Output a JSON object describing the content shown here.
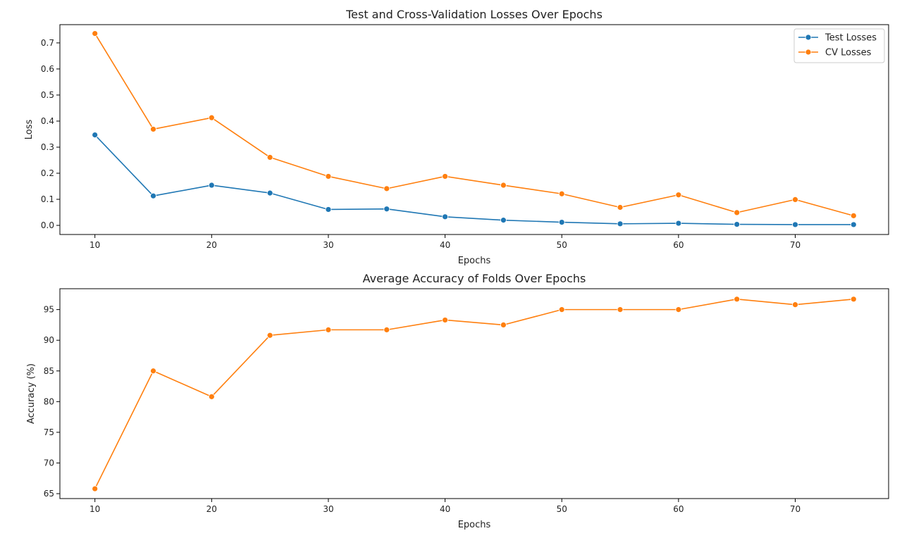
{
  "colors": {
    "test": "#1f77b4",
    "cv": "#ff7f0e"
  },
  "chart_data": [
    {
      "type": "line",
      "title": "Test and Cross-Validation Losses Over Epochs",
      "xlabel": "Epochs",
      "ylabel": "Loss",
      "xlim": [
        7,
        78
      ],
      "ylim": [
        -0.035,
        0.77
      ],
      "xticks": [
        10,
        20,
        30,
        40,
        50,
        60,
        70
      ],
      "yticks": [
        0.0,
        0.1,
        0.2,
        0.3,
        0.4,
        0.5,
        0.6,
        0.7
      ],
      "ytick_labels": [
        "0.0",
        "0.1",
        "0.2",
        "0.3",
        "0.4",
        "0.5",
        "0.6",
        "0.7"
      ],
      "legend_position": "top-right",
      "grid": false,
      "x": [
        10,
        15,
        20,
        25,
        30,
        35,
        40,
        45,
        50,
        55,
        60,
        65,
        70,
        75
      ],
      "series": [
        {
          "name": "Test Losses",
          "color_key": "test",
          "values": [
            0.347,
            0.113,
            0.154,
            0.124,
            0.061,
            0.063,
            0.033,
            0.02,
            0.012,
            0.006,
            0.008,
            0.004,
            0.003,
            0.003
          ]
        },
        {
          "name": "CV Losses",
          "color_key": "cv",
          "values": [
            0.736,
            0.369,
            0.413,
            0.261,
            0.188,
            0.141,
            0.188,
            0.154,
            0.121,
            0.069,
            0.117,
            0.049,
            0.099,
            0.037
          ]
        }
      ]
    },
    {
      "type": "line",
      "title": "Average Accuracy of Folds Over Epochs",
      "xlabel": "Epochs",
      "ylabel": "Accuracy (%)",
      "xlim": [
        7,
        78
      ],
      "ylim": [
        64.2,
        98.4
      ],
      "xticks": [
        10,
        20,
        30,
        40,
        50,
        60,
        70
      ],
      "yticks": [
        65,
        70,
        75,
        80,
        85,
        90,
        95
      ],
      "ytick_labels": [
        "65",
        "70",
        "75",
        "80",
        "85",
        "90",
        "95"
      ],
      "legend_position": "none",
      "grid": false,
      "x": [
        10,
        15,
        20,
        25,
        30,
        35,
        40,
        45,
        50,
        55,
        60,
        65,
        70,
        75
      ],
      "series": [
        {
          "name": "",
          "color_key": "cv",
          "values": [
            65.8,
            85.0,
            80.8,
            90.8,
            91.7,
            91.7,
            93.3,
            92.5,
            95.0,
            95.0,
            95.0,
            96.7,
            95.8,
            96.7
          ]
        }
      ]
    }
  ]
}
